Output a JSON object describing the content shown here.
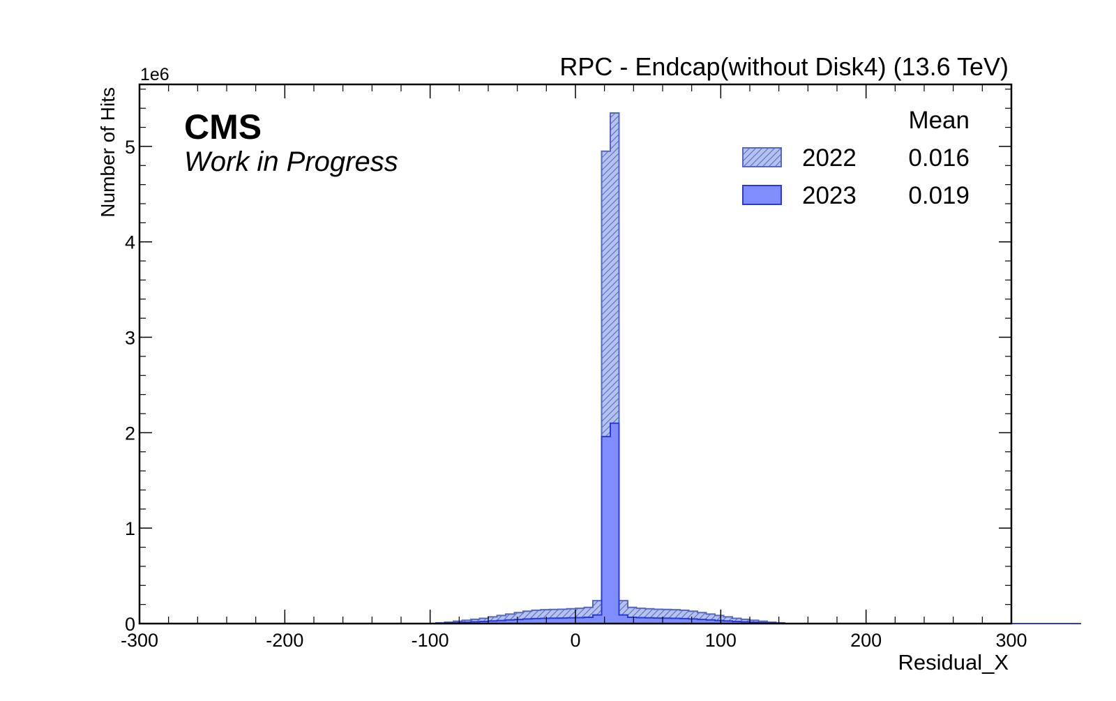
{
  "chart_data": {
    "type": "histogram",
    "title": "RPC - Endcap(without Disk4) (13.6 TeV)",
    "experiment_label": "CMS",
    "status_label": "Work in Progress",
    "xlabel": "Residual_X",
    "ylabel": "Number of Hits",
    "y_multiplier": "1e6",
    "xlim": [
      -300,
      300
    ],
    "ylim": [
      0,
      5.65
    ],
    "x_ticks": [
      "-300",
      "-200",
      "-100",
      "0",
      "100",
      "200",
      "300"
    ],
    "x_tick_values": [
      -300,
      -200,
      -100,
      0,
      100,
      200,
      300
    ],
    "y_ticks": [
      "0",
      "1",
      "2",
      "3",
      "4",
      "5"
    ],
    "y_tick_values": [
      0,
      1,
      2,
      3,
      4,
      5
    ],
    "bin_width": 6,
    "bin_edges_start": -300,
    "legend": {
      "position": "top-right",
      "header": "Mean",
      "entries": [
        {
          "name": "2022",
          "mean": "0.016"
        },
        {
          "name": "2023",
          "mean": "0.019"
        }
      ]
    },
    "colors": {
      "series_2022_fill": "#b3c3ee",
      "series_2022_edge": "#5565c8",
      "series_2023_fill": "#7f8dfd",
      "series_2023_edge": "#2b38d8"
    },
    "series": [
      {
        "name": "2022",
        "style": "hatched",
        "values": [
          0,
          0,
          0,
          0,
          0,
          0,
          0,
          0,
          0,
          0,
          0,
          0,
          0,
          0,
          0,
          0,
          0,
          0,
          0,
          0,
          0,
          0,
          0,
          0,
          0,
          0,
          0,
          0,
          0,
          0,
          0,
          0,
          0,
          0,
          0.008,
          0.015,
          0.025,
          0.035,
          0.045,
          0.055,
          0.07,
          0.085,
          0.1,
          0.115,
          0.13,
          0.14,
          0.145,
          0.148,
          0.15,
          0.155,
          0.16,
          0.17,
          0.24,
          4.95,
          5.35,
          0.24,
          0.17,
          0.16,
          0.155,
          0.15,
          0.148,
          0.145,
          0.14,
          0.13,
          0.115,
          0.1,
          0.085,
          0.07,
          0.055,
          0.045,
          0.035,
          0.025,
          0.015,
          0.008,
          0,
          0,
          0,
          0,
          0,
          0,
          0,
          0,
          0,
          0,
          0,
          0,
          0,
          0,
          0,
          0,
          0,
          0,
          0,
          0,
          0,
          0,
          0,
          0,
          0,
          0,
          0,
          0,
          0,
          0,
          0,
          0,
          0,
          0
        ]
      },
      {
        "name": "2023",
        "style": "filled",
        "values": [
          0,
          0,
          0,
          0,
          0,
          0,
          0,
          0,
          0,
          0,
          0,
          0,
          0,
          0,
          0,
          0,
          0,
          0,
          0,
          0,
          0,
          0,
          0,
          0,
          0,
          0,
          0,
          0,
          0,
          0,
          0,
          0,
          0,
          0,
          0.003,
          0.006,
          0.01,
          0.014,
          0.018,
          0.022,
          0.027,
          0.032,
          0.038,
          0.043,
          0.048,
          0.052,
          0.055,
          0.057,
          0.058,
          0.06,
          0.062,
          0.066,
          0.09,
          1.96,
          2.1,
          0.09,
          0.066,
          0.062,
          0.06,
          0.058,
          0.057,
          0.055,
          0.052,
          0.048,
          0.043,
          0.038,
          0.032,
          0.027,
          0.022,
          0.018,
          0.014,
          0.01,
          0.006,
          0.003,
          0,
          0,
          0,
          0,
          0,
          0,
          0,
          0,
          0,
          0,
          0,
          0,
          0,
          0,
          0,
          0,
          0,
          0,
          0,
          0,
          0,
          0,
          0,
          0,
          0,
          0,
          0,
          0,
          0,
          0,
          0,
          0,
          0,
          0
        ]
      }
    ]
  }
}
